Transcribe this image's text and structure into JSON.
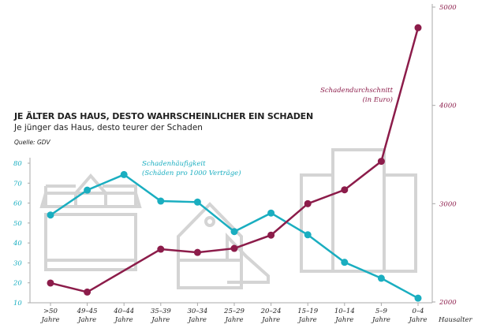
{
  "chart_data": {
    "type": "line",
    "title": "JE ÄLTER DAS HAUS, DESTO WAHRSCHEINLICHER EIN SCHADEN",
    "subtitle": "Je jünger das Haus, desto teurer der Schaden",
    "source": "Quelle: GDV",
    "xlabel": "Hausalter",
    "categories": [
      ">50 Jahre",
      "49–45 Jahre",
      "40–44 Jahre",
      "35–39 Jahre",
      "30–34 Jahre",
      "25–29 Jahre",
      "20–24 Jahre",
      "15–19 Jahre",
      "10–14 Jahre",
      "5–9 Jahre",
      "0–4 Jahre"
    ],
    "category_lines": [
      [
        ">50",
        "Jahre"
      ],
      [
        "49–45",
        "Jahre"
      ],
      [
        "40–44",
        "Jahre"
      ],
      [
        "35–39",
        "Jahre"
      ],
      [
        "30–34",
        "Jahre"
      ],
      [
        "25–29",
        "Jahre"
      ],
      [
        "20–24",
        "Jahre"
      ],
      [
        "15–19",
        "Jahre"
      ],
      [
        "10–14",
        "Jahre"
      ],
      [
        "5–9",
        "Jahre"
      ],
      [
        "0–4",
        "Jahre"
      ]
    ],
    "left_axis": {
      "ylim": [
        10,
        80
      ],
      "ticks": [
        "10",
        "20",
        "30",
        "40",
        "50",
        "60",
        "70",
        "80"
      ],
      "color": "#1aaec0"
    },
    "right_axis": {
      "ylim": [
        2000,
        5000
      ],
      "ticks": [
        "2000",
        "3000",
        "4000",
        "5000"
      ],
      "color": "#8c1c4a"
    },
    "series": [
      {
        "name": "Schadenhäufigkeit",
        "name_line2": "(Schäden pro 1000 Verträge)",
        "axis": "left",
        "color": "#1aaec0",
        "values": [
          54,
          66.5,
          74.3,
          61,
          60.5,
          45.7,
          55,
          44.1,
          30.3,
          22.3,
          12.3
        ]
      },
      {
        "name": "Schadendurchschnitt",
        "name_line2": "(in Euro)",
        "axis": "right",
        "color": "#8c1c4a",
        "values": [
          2193,
          2101,
          null,
          2537,
          2504,
          2545,
          2680,
          3000,
          3141,
          3431,
          4790
        ]
      }
    ],
    "grid": false
  }
}
